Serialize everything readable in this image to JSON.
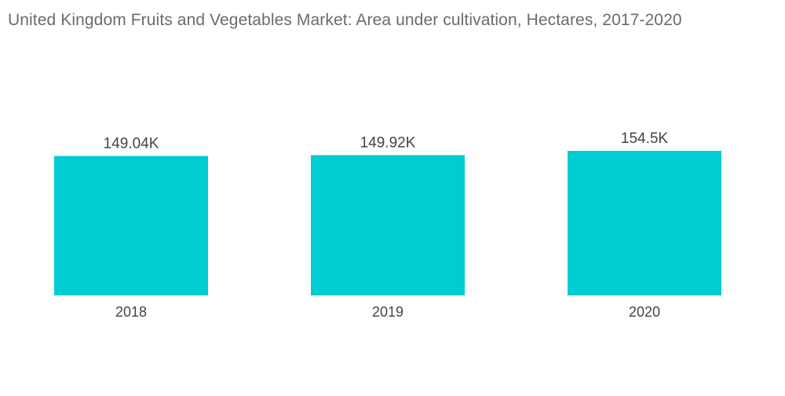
{
  "chart_data": {
    "type": "bar",
    "title": "United Kingdom Fruits and Vegetables Market: Area under cultivation, Hectares, 2017-2020",
    "xlabel": "",
    "ylabel": "",
    "categories": [
      "2018",
      "2019",
      "2020"
    ],
    "values": [
      149040,
      149920,
      154500
    ],
    "data_labels": [
      "149.04K",
      "149.92K",
      "154.5K"
    ],
    "ylim": [
      0,
      154500
    ],
    "grid": false,
    "legend": "none",
    "colors": {
      "bar": "#00cdd1",
      "title": "#6b6b6b",
      "text": "#444444"
    }
  }
}
